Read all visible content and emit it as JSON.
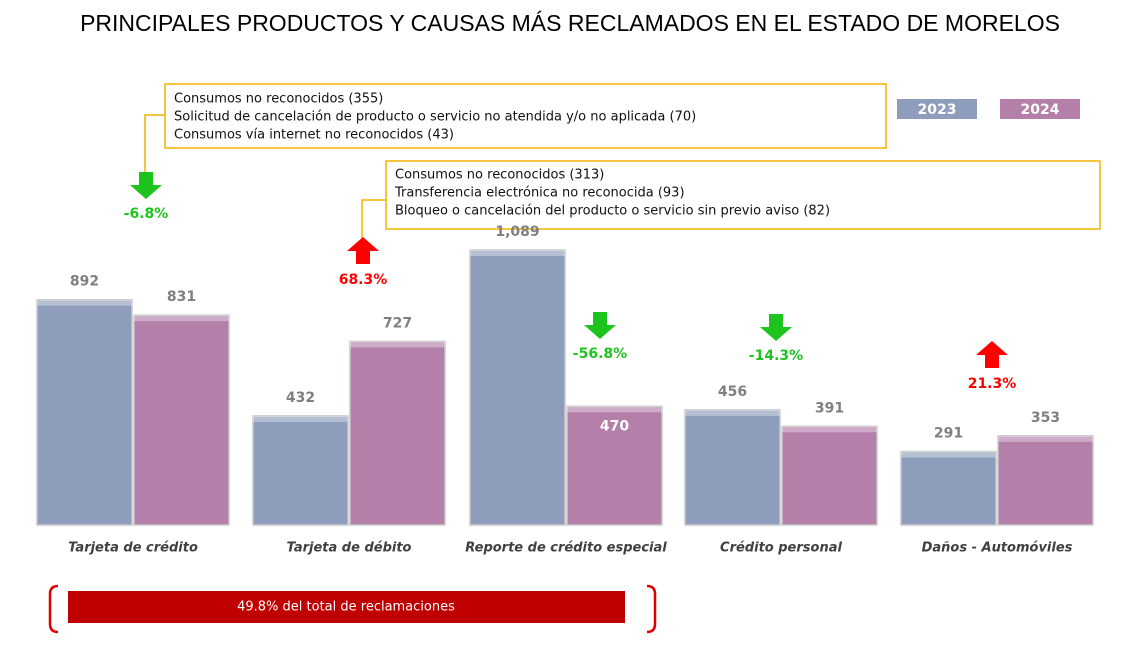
{
  "chart_data": {
    "type": "bar",
    "title": "PRINCIPALES PRODUCTOS Y CAUSAS MÁS RECLAMADOS EN EL ESTADO DE MORELOS",
    "categories": [
      "Tarjeta de crédito",
      "Tarjeta de débito",
      "Reporte de crédito especial",
      "Crédito personal",
      "Daños - Automóviles"
    ],
    "series": [
      {
        "name": "2023",
        "color": "#8e9dbb",
        "values": [
          892,
          432,
          1089,
          456,
          291
        ],
        "value_labels": [
          "892",
          "432",
          "1,089",
          "456",
          "291"
        ]
      },
      {
        "name": "2024",
        "color": "#b47fa8",
        "values": [
          831,
          727,
          470,
          391,
          353
        ],
        "value_labels": [
          "831",
          "727",
          "470",
          "391",
          "353"
        ]
      }
    ],
    "changes": {
      "values": [
        -6.8,
        68.3,
        -56.8,
        -14.3,
        21.3
      ],
      "value_labels": [
        "-6.8%",
        "68.3%",
        "-56.8%",
        "-14.3%",
        "21.3%"
      ],
      "up_color": "#ff0000",
      "down_color": "#1ec41e"
    },
    "callouts": [
      {
        "lines": [
          "Consumos no reconocidos (355)",
          "Solicitud de cancelación de producto o servicio no atendida y/o no aplicada (70)",
          "Consumos vía internet no reconocidos (43)"
        ]
      },
      {
        "lines": [
          "Consumos no reconocidos (313)",
          "Transferencia electrónica no reconocida (93)",
          "Bloqueo o cancelación del producto o servicio sin previo aviso (82)"
        ]
      }
    ],
    "banner": "49.8% del total de reclamaciones"
  }
}
